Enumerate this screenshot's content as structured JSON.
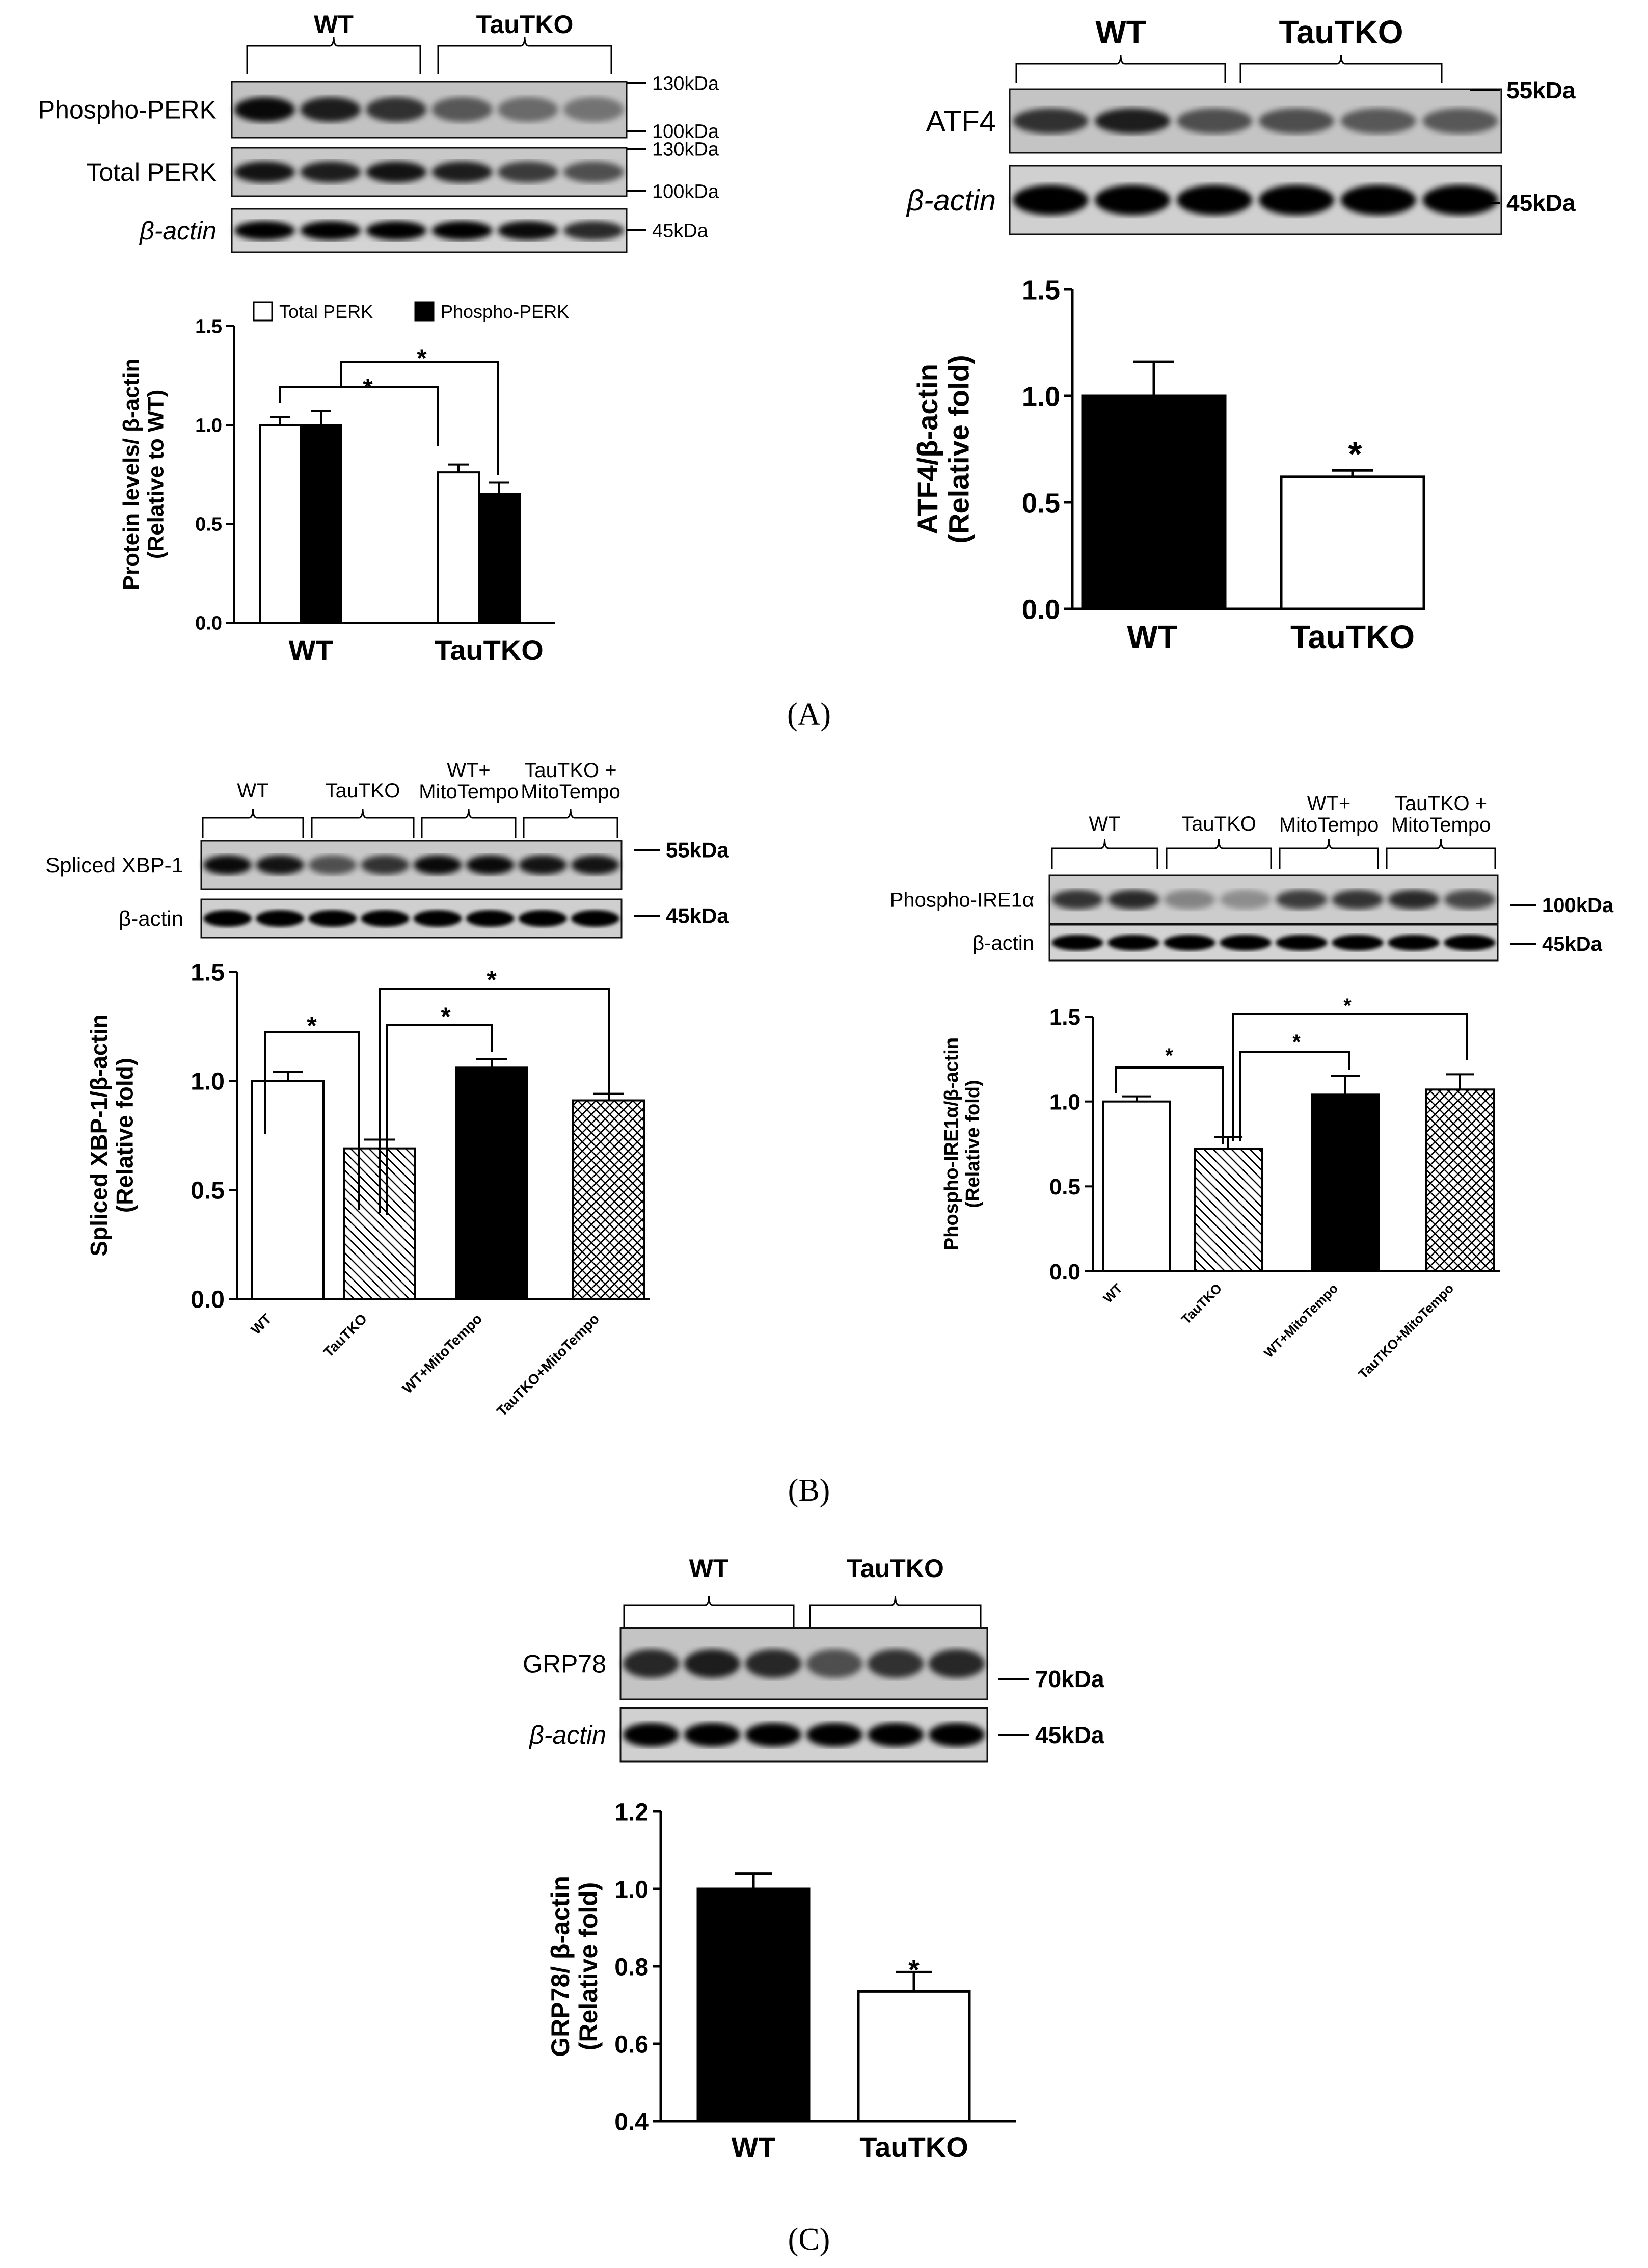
{
  "panel_labels": {
    "A": "(A)",
    "B": "(B)",
    "C": "(C)"
  },
  "blots": {
    "perk": {
      "groups": [
        "WT",
        "TauTKO"
      ],
      "rows": [
        "Phospho-PERK",
        "Total PERK",
        "β-actin"
      ],
      "markers": [
        "130kDa",
        "100kDa",
        "130kDa",
        "100kDa",
        "45kDa"
      ]
    },
    "atf4": {
      "groups": [
        "WT",
        "TauTKO"
      ],
      "rows": [
        "ATF4",
        "β-actin"
      ],
      "markers": [
        "55kDa",
        "45kDa"
      ]
    },
    "xbp1": {
      "groups": [
        "WT",
        "TauTKO",
        "WT+\nMitoTempo",
        "TauTKO +\nMitoTempo"
      ],
      "rows": [
        "Spliced XBP-1",
        "β-actin"
      ],
      "markers": [
        "55kDa",
        "45kDa"
      ]
    },
    "ire1": {
      "groups": [
        "WT",
        "TauTKO",
        "WT+\nMitoTempo",
        "TauTKO +\nMitoTempo"
      ],
      "rows": [
        "Phospho-IRE1α",
        "β-actin"
      ],
      "markers": [
        "100kDa",
        "45kDa"
      ]
    },
    "grp78": {
      "groups": [
        "WT",
        "TauTKO"
      ],
      "rows": [
        "GRP78",
        "β-actin"
      ],
      "markers": [
        "70kDa",
        "45kDa"
      ]
    }
  },
  "chart_data": [
    {
      "id": "perk",
      "type": "bar",
      "categories": [
        "WT",
        "TauTKO"
      ],
      "series": [
        {
          "name": "Total PERK",
          "values": [
            1.0,
            0.76
          ],
          "errors": [
            0.04,
            0.04
          ],
          "fill": "#ffffff"
        },
        {
          "name": "Phospho-PERK",
          "values": [
            1.0,
            0.65
          ],
          "errors": [
            0.07,
            0.06
          ],
          "fill": "#000000"
        }
      ],
      "ylabel": [
        "Protein levels/ β-actin",
        "(Relative to WT)"
      ],
      "ylim": [
        0,
        1.5
      ],
      "yticks": [
        "0.0",
        "0.5",
        "1.0",
        "1.5"
      ],
      "legend": "top",
      "significance": [
        "*",
        "*"
      ]
    },
    {
      "id": "atf4",
      "type": "bar",
      "categories": [
        "WT",
        "TauTKO"
      ],
      "values": [
        1.0,
        0.62
      ],
      "errors": [
        0.16,
        0.03
      ],
      "fills": [
        "#000000",
        "#ffffff"
      ],
      "ylabel": [
        "ATF4/β-actin",
        "(Relative fold)"
      ],
      "ylim": [
        0,
        1.5
      ],
      "yticks": [
        "0.0",
        "0.5",
        "1.0",
        "1.5"
      ],
      "significance": [
        "*"
      ]
    },
    {
      "id": "xbp1",
      "type": "bar",
      "categories": [
        "WT",
        "TauTKO",
        "WT+MitoTempo",
        "TauTKO+MitoTempo"
      ],
      "values": [
        1.0,
        0.69,
        1.06,
        0.91
      ],
      "errors": [
        0.04,
        0.04,
        0.04,
        0.03
      ],
      "fills": [
        "#ffffff",
        "hatch",
        "#000000",
        "crosshatch"
      ],
      "ylabel": [
        "Spliced XBP-1/β-actin",
        "(Relative fold)"
      ],
      "ylim": [
        0,
        1.5
      ],
      "yticks": [
        "0.0",
        "0.5",
        "1.0",
        "1.5"
      ],
      "significance": [
        "*",
        "*",
        "*"
      ]
    },
    {
      "id": "ire1",
      "type": "bar",
      "categories": [
        "WT",
        "TauTKO",
        "WT+MitoTempo",
        "TauTKO+MitoTempo"
      ],
      "values": [
        1.0,
        0.72,
        1.04,
        1.07
      ],
      "errors": [
        0.03,
        0.07,
        0.11,
        0.09
      ],
      "fills": [
        "#ffffff",
        "hatch",
        "#000000",
        "crosshatch"
      ],
      "ylabel": [
        "Phospho-IRE1α/β-actin",
        "(Relative fold)"
      ],
      "ylim": [
        0,
        1.5
      ],
      "yticks": [
        "0.0",
        "0.5",
        "1.0",
        "1.5"
      ],
      "significance": [
        "*",
        "*",
        "*"
      ]
    },
    {
      "id": "grp78",
      "type": "bar",
      "categories": [
        "WT",
        "TauTKO"
      ],
      "values": [
        1.0,
        0.735
      ],
      "errors": [
        0.04,
        0.05
      ],
      "fills": [
        "#000000",
        "#ffffff"
      ],
      "ylabel": [
        "GRP78/ β-actin",
        "(Relative fold)"
      ],
      "ylim": [
        0.4,
        1.2
      ],
      "yticks": [
        "0.4",
        "0.6",
        "0.8",
        "1.0",
        "1.2"
      ],
      "significance": [
        "*"
      ]
    }
  ]
}
